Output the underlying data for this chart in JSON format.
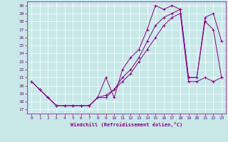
{
  "xlabel": "Windchill (Refroidissement éolien,°C)",
  "bg_color": "#c8e8e8",
  "line_color": "#880088",
  "xlim": [
    -0.5,
    23.5
  ],
  "ylim": [
    16.5,
    30.5
  ],
  "xticks": [
    0,
    1,
    2,
    3,
    4,
    5,
    6,
    7,
    8,
    9,
    10,
    11,
    12,
    13,
    14,
    15,
    16,
    17,
    18,
    19,
    20,
    21,
    22,
    23
  ],
  "yticks": [
    17,
    18,
    19,
    20,
    21,
    22,
    23,
    24,
    25,
    26,
    27,
    28,
    29,
    30
  ],
  "curve_a_x": [
    0,
    1,
    2,
    3,
    4,
    5,
    6,
    7,
    8,
    9,
    10,
    11,
    12,
    13,
    14,
    15,
    16,
    17,
    18,
    19,
    20,
    21,
    22,
    23
  ],
  "curve_a_y": [
    20.5,
    19.5,
    18.5,
    17.5,
    17.5,
    17.5,
    17.5,
    17.5,
    18.5,
    21.0,
    18.5,
    22.0,
    23.5,
    24.5,
    27.0,
    30.0,
    29.5,
    30.0,
    29.5,
    21.0,
    21.0,
    28.5,
    29.0,
    25.5
  ],
  "curve_b_x": [
    0,
    1,
    2,
    3,
    4,
    5,
    6,
    7,
    8,
    9,
    10,
    11,
    12,
    13,
    14,
    15,
    16,
    17,
    18,
    19,
    20,
    21,
    22,
    23
  ],
  "curve_b_y": [
    20.5,
    19.5,
    18.5,
    17.5,
    17.5,
    17.5,
    17.5,
    17.5,
    18.5,
    18.5,
    19.5,
    21.0,
    22.0,
    23.5,
    25.5,
    27.5,
    28.5,
    29.0,
    29.5,
    21.0,
    21.0,
    28.0,
    27.0,
    21.0
  ],
  "curve_c_x": [
    1,
    2,
    3,
    4,
    5,
    6,
    7,
    8,
    9,
    10,
    11,
    12,
    13,
    14,
    15,
    16,
    17,
    18,
    19,
    20,
    21,
    22,
    23
  ],
  "curve_c_y": [
    19.5,
    18.5,
    17.5,
    17.5,
    17.5,
    17.5,
    17.5,
    18.5,
    18.8,
    19.5,
    20.5,
    21.5,
    23.0,
    24.5,
    26.0,
    27.5,
    28.5,
    29.0,
    20.5,
    20.5,
    21.0,
    20.5,
    21.0
  ]
}
